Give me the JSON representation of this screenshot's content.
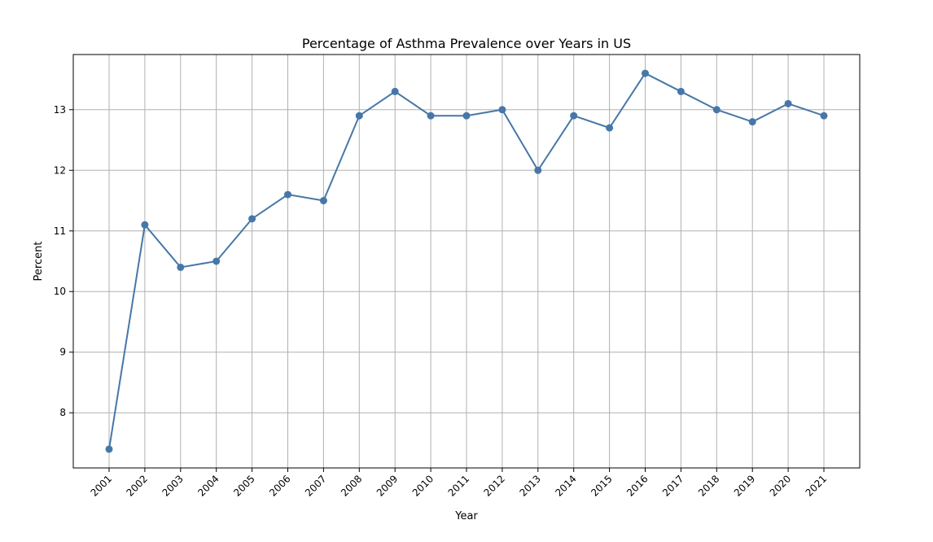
{
  "chart_data": {
    "type": "line",
    "title": "Percentage of Asthma Prevalence over Years in US",
    "xlabel": "Year",
    "ylabel": "Percent",
    "categories": [
      "2001",
      "2002",
      "2003",
      "2004",
      "2005",
      "2006",
      "2007",
      "2008",
      "2009",
      "2010",
      "2011",
      "2012",
      "2013",
      "2014",
      "2015",
      "2016",
      "2017",
      "2018",
      "2019",
      "2020",
      "2021"
    ],
    "series": [
      {
        "values": [
          7.4,
          11.1,
          10.4,
          10.5,
          11.2,
          11.6,
          11.5,
          12.9,
          13.3,
          12.9,
          12.9,
          13.0,
          12.0,
          12.9,
          12.7,
          13.6,
          13.3,
          13.0,
          12.8,
          13.1,
          12.9
        ],
        "color": "#4677a8"
      }
    ],
    "ylim": [
      7.09,
      13.91
    ],
    "yticks": [
      8,
      9,
      10,
      11,
      12,
      13
    ],
    "grid": true,
    "marker": "circle"
  }
}
